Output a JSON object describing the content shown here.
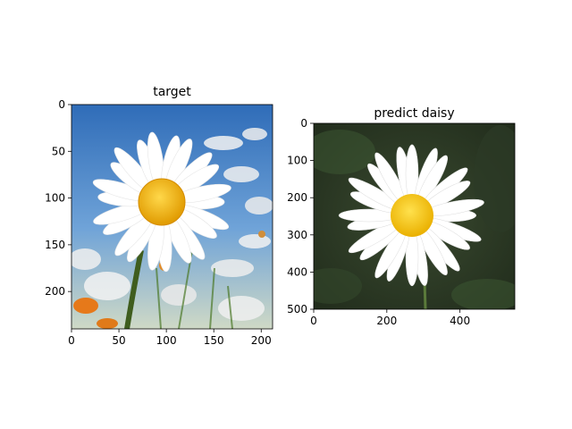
{
  "chart_data": [
    {
      "type": "image",
      "title": "target",
      "image_content": "close-up photo of a white daisy with yellow center against blue sky and a field of daisies",
      "x_ticks": [
        "0",
        "50",
        "100",
        "150",
        "200"
      ],
      "y_ticks": [
        "0",
        "50",
        "100",
        "150",
        "200"
      ],
      "xlim": [
        0,
        212
      ],
      "ylim": [
        240,
        0
      ],
      "colors": {
        "sky": "#3b78c2",
        "petal": "#ffffff",
        "center": "#f2b705",
        "stem": "#3f5d1e"
      }
    },
    {
      "type": "image",
      "title": "predict daisy",
      "image_content": "white daisy with yellow center on a dark green blurred background",
      "x_ticks": [
        "0",
        "200",
        "400"
      ],
      "y_ticks": [
        "0",
        "100",
        "200",
        "300",
        "400",
        "500"
      ],
      "xlim": [
        0,
        550
      ],
      "ylim": [
        500,
        0
      ],
      "colors": {
        "background": "#2a3a24",
        "petal": "#ffffff",
        "center": "#f4c20d",
        "stem": "#5a7a3a"
      }
    }
  ]
}
